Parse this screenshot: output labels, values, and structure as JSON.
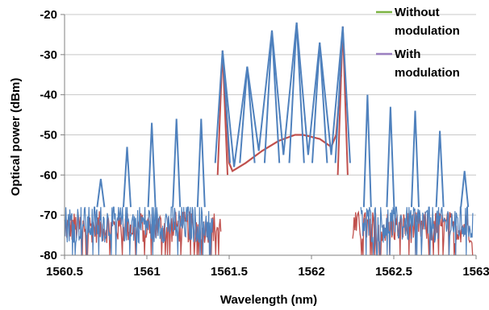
{
  "chart_data": {
    "type": "line",
    "xlabel": "Wavelength (nm)",
    "ylabel": "Optical power (dBm)",
    "xlim": [
      1560.5,
      1563
    ],
    "ylim": [
      -80,
      -20
    ],
    "x_ticks": [
      1560.5,
      1561,
      1561.5,
      1562,
      1562.5,
      1563
    ],
    "x_tick_labels": [
      "1560.5",
      "1561",
      "1561.5",
      "1562",
      "1562.5",
      "1563"
    ],
    "y_ticks": [
      -80,
      -70,
      -60,
      -50,
      -40,
      -30,
      -20
    ],
    "y_tick_labels": [
      "-80",
      "-70",
      "-60",
      "-50",
      "-40",
      "-30",
      "-20"
    ],
    "grid": "horizontal",
    "legend_position": "top-right",
    "x_data_range": [
      1560.5,
      1562.98
    ],
    "legend": [
      {
        "name": "Without\nmodulation",
        "lines": [
          "Without",
          "modulation"
        ],
        "color": "#7cb342"
      },
      {
        "name": "With\nmodulation",
        "lines": [
          "With",
          "modulation"
        ],
        "color": "#9b7fc0"
      }
    ],
    "series": [
      {
        "name": "Without modulation",
        "color": "#c0504d",
        "noise_floor": -73,
        "noise_region": [
          [
            1560.5,
            1561.45
          ],
          [
            1562.25,
            1562.98
          ]
        ],
        "peaks": [
          [
            1561.46,
            -29
          ],
          [
            1562.19,
            -23
          ]
        ],
        "shoulder_points": [
          [
            1561.47,
            -34
          ],
          [
            1561.5,
            -57
          ],
          [
            1561.52,
            -59
          ],
          [
            1561.6,
            -57
          ],
          [
            1561.7,
            -54
          ],
          [
            1561.8,
            -51.5
          ],
          [
            1561.9,
            -50
          ],
          [
            1561.95,
            -50
          ],
          [
            1562.05,
            -51
          ],
          [
            1562.12,
            -53
          ],
          [
            1562.15,
            -50
          ],
          [
            1562.18,
            -35
          ]
        ]
      },
      {
        "name": "With modulation",
        "color": "#4f81bd",
        "noise_floor": -72,
        "peaks": [
          [
            1560.72,
            -61
          ],
          [
            1560.88,
            -53
          ],
          [
            1561.03,
            -47
          ],
          [
            1561.18,
            -46
          ],
          [
            1561.33,
            -46
          ],
          [
            1561.46,
            -29
          ],
          [
            1561.61,
            -33
          ],
          [
            1561.76,
            -24
          ],
          [
            1561.91,
            -22
          ],
          [
            1562.05,
            -27
          ],
          [
            1562.19,
            -23
          ],
          [
            1562.34,
            -40
          ],
          [
            1562.48,
            -43
          ],
          [
            1562.63,
            -44
          ],
          [
            1562.78,
            -49
          ],
          [
            1562.93,
            -59
          ]
        ],
        "valleys": [
          [
            1561.53,
            -58
          ],
          [
            1561.68,
            -54
          ],
          [
            1561.83,
            -55
          ],
          [
            1561.98,
            -55
          ],
          [
            1562.12,
            -55
          ]
        ]
      }
    ]
  }
}
